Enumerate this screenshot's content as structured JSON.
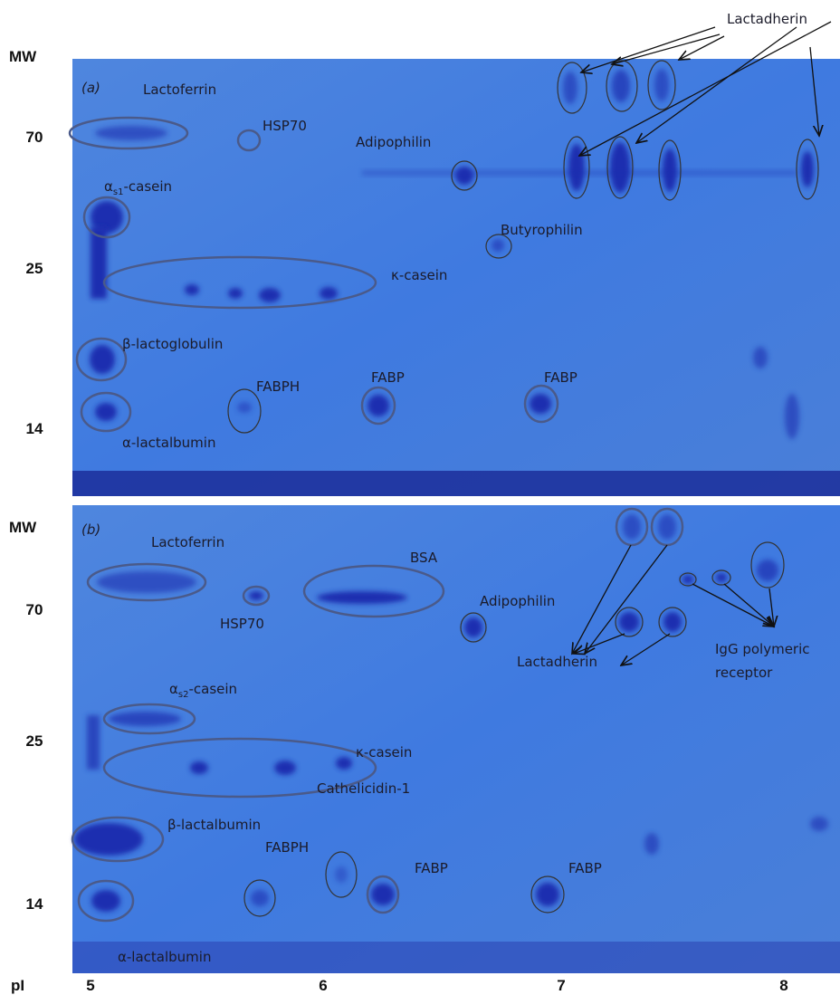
{
  "panels": [
    {
      "label": "(a)",
      "mw_label": "MW",
      "mw_ticks": [
        "70",
        "25",
        "14"
      ],
      "annotations": {
        "lactoferrin": "Lactoferrin",
        "hsp70": "HSP70",
        "adipophilin": "Adipophilin",
        "as1_casein": {
          "main": "α",
          "sub": "s1",
          "rest": "-casein"
        },
        "butyrophilin": "Butyrophilin",
        "k_casein": "κ-casein",
        "b_lactoglobulin": "β-lactoglobulin",
        "fabph": "FABPH",
        "fabp_1": "FABP",
        "fabp_2": "FABP",
        "a_lactalbumin": "α-lactalbumin",
        "lactadherin": "Lactadherin"
      }
    },
    {
      "label": "(b)",
      "mw_label": "MW",
      "mw_ticks": [
        "70",
        "25",
        "14"
      ],
      "annotations": {
        "lactoferrin": "Lactoferrin",
        "bsa": "BSA",
        "hsp70": "HSP70",
        "adipophilin": "Adipophilin",
        "lactadherin": "Lactadherin",
        "igg_receptor": [
          "IgG polymeric",
          "receptor"
        ],
        "as2_casein": {
          "main": "α",
          "sub": "s2",
          "rest": "-casein"
        },
        "k_casein": "κ-casein",
        "b_lactalbumin": "β-lactalbumin",
        "cathelicidin": "Cathelicidin-1",
        "fabph": "FABPH",
        "fabp_1": "FABP",
        "fabp_2": "FABP",
        "a_lactalbumin": "α-lactalbumin"
      }
    }
  ],
  "pi_axis": {
    "label": "pI",
    "ticks": [
      "5",
      "6",
      "7",
      "8"
    ]
  }
}
